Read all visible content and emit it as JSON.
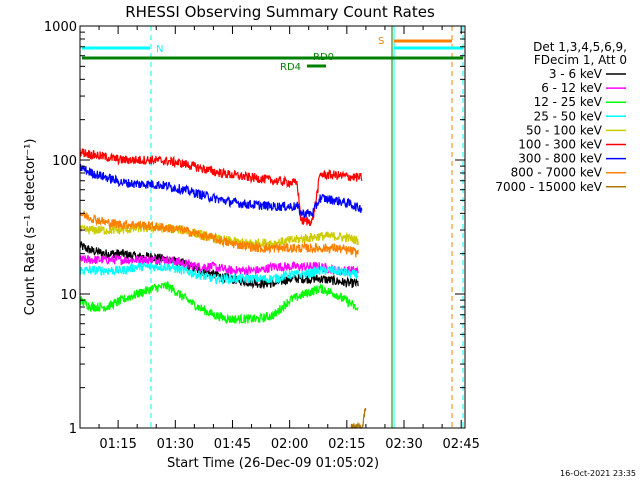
{
  "chart_data": {
    "type": "line",
    "title": "RHESSI Observing Summary Count Rates",
    "xlabel": "Start Time (26-Dec-09 01:05:02)",
    "ylabel": "Count Rate (s⁻¹ detector⁻¹)",
    "y_scale": "log",
    "ylim": [
      1,
      1000
    ],
    "x_range_minutes": [
      5,
      106
    ],
    "x_ticks": [
      {
        "m": 15,
        "label": "01:15"
      },
      {
        "m": 30,
        "label": "01:30"
      },
      {
        "m": 45,
        "label": "01:45"
      },
      {
        "m": 60,
        "label": "02:00"
      },
      {
        "m": 75,
        "label": "02:15"
      },
      {
        "m": 90,
        "label": "02:30"
      },
      {
        "m": 105,
        "label": "02:45"
      }
    ],
    "y_ticks": [
      {
        "v": 1,
        "label": "1"
      },
      {
        "v": 10,
        "label": "10"
      },
      {
        "v": 100,
        "label": "100"
      },
      {
        "v": 1000,
        "label": "1000"
      }
    ],
    "legend_header": [
      "Det 1,3,4,5,6,9,",
      "FDecim 1, Att 0"
    ],
    "legend_placement": "right",
    "series": [
      {
        "name": "3 - 6 keV",
        "color": "#000000",
        "x": [
          5,
          8,
          12,
          16,
          20,
          24,
          28,
          32,
          36,
          40,
          44,
          48,
          52,
          56,
          60,
          64,
          68,
          72,
          76,
          78
        ],
        "y": [
          23,
          21,
          20,
          20,
          19,
          19,
          18,
          17,
          15,
          14,
          13,
          12.5,
          12,
          12,
          13,
          13,
          13,
          12.5,
          12,
          12
        ]
      },
      {
        "name": "6 - 12 keV",
        "color": "#ff00ff",
        "x": [
          5,
          8,
          12,
          16,
          20,
          24,
          28,
          32,
          36,
          40,
          44,
          48,
          52,
          56,
          60,
          64,
          68,
          72,
          76,
          78
        ],
        "y": [
          18,
          18,
          18,
          18,
          18,
          18,
          18,
          17,
          16,
          16,
          15,
          15,
          15,
          16,
          16,
          16,
          16,
          15,
          15,
          15
        ]
      },
      {
        "name": "12 - 25 keV",
        "color": "#00ff00",
        "x": [
          5,
          8,
          12,
          16,
          20,
          24,
          28,
          30,
          32,
          36,
          40,
          44,
          48,
          52,
          56,
          60,
          64,
          68,
          72,
          76,
          78
        ],
        "y": [
          9,
          8,
          8,
          9,
          10,
          11,
          11.5,
          10.5,
          9.5,
          8,
          7,
          6.5,
          6.5,
          6.5,
          7,
          9,
          10,
          11,
          10,
          8.5,
          7.5
        ]
      },
      {
        "name": "25 - 50 keV",
        "color": "#00ffff",
        "x": [
          5,
          8,
          12,
          16,
          20,
          24,
          28,
          32,
          36,
          40,
          44,
          48,
          52,
          56,
          60,
          64,
          68,
          72,
          76,
          78
        ],
        "y": [
          15,
          15,
          15,
          15,
          16,
          16,
          16,
          15,
          14,
          13,
          13,
          13,
          13,
          13,
          14,
          14,
          15,
          15,
          14,
          14
        ]
      },
      {
        "name": "50 - 100 keV",
        "color": "#cccc00",
        "x": [
          5,
          8,
          12,
          16,
          20,
          24,
          28,
          32,
          36,
          40,
          44,
          48,
          52,
          56,
          60,
          64,
          68,
          72,
          76,
          78
        ],
        "y": [
          30,
          30,
          30,
          30,
          31,
          31,
          31,
          30,
          28,
          26,
          25,
          24,
          24,
          24,
          25,
          26,
          27,
          27,
          26,
          25
        ]
      },
      {
        "name": "100 - 300 keV",
        "color": "#ff0000",
        "x": [
          5,
          8,
          12,
          16,
          20,
          24,
          28,
          32,
          36,
          40,
          44,
          48,
          52,
          56,
          60,
          62,
          63,
          64,
          66,
          68,
          72,
          76,
          78,
          79
        ],
        "y": [
          115,
          110,
          105,
          100,
          100,
          100,
          98,
          94,
          88,
          82,
          78,
          75,
          73,
          70,
          68,
          67,
          35,
          35,
          35,
          78,
          77,
          75,
          74,
          74
        ]
      },
      {
        "name": "300 - 800 keV",
        "color": "#0000ff",
        "x": [
          5,
          8,
          12,
          16,
          20,
          24,
          28,
          32,
          36,
          40,
          44,
          48,
          52,
          56,
          60,
          62,
          63,
          64,
          66,
          68,
          72,
          76,
          78,
          79
        ],
        "y": [
          88,
          80,
          74,
          68,
          66,
          66,
          64,
          60,
          56,
          52,
          49,
          47,
          46,
          45,
          45,
          45,
          40,
          40,
          40,
          52,
          50,
          47,
          44,
          44
        ]
      },
      {
        "name": "800 - 7000 keV",
        "color": "#ff8000",
        "x": [
          5,
          8,
          12,
          16,
          20,
          24,
          28,
          32,
          36,
          40,
          44,
          48,
          52,
          56,
          60,
          64,
          68,
          72,
          76,
          78
        ],
        "y": [
          40,
          37,
          34,
          33,
          33,
          32,
          31,
          30,
          28,
          26,
          24,
          23,
          22,
          22,
          22,
          22,
          22,
          22,
          21,
          20
        ]
      },
      {
        "name": "7000 - 15000 keV",
        "color": "#aa7700",
        "x": [
          76,
          79,
          80
        ],
        "y": [
          1,
          1,
          1.5
        ]
      }
    ],
    "annotations": [
      {
        "label": "N",
        "color": "#00ffff"
      },
      {
        "label": "RD0",
        "color": "#008000"
      },
      {
        "label": "RD4",
        "color": "#008000"
      },
      {
        "label": "S",
        "color": "#ff8000"
      }
    ]
  },
  "footer": {
    "timestamp": "16-Oct-2021 23:35"
  }
}
